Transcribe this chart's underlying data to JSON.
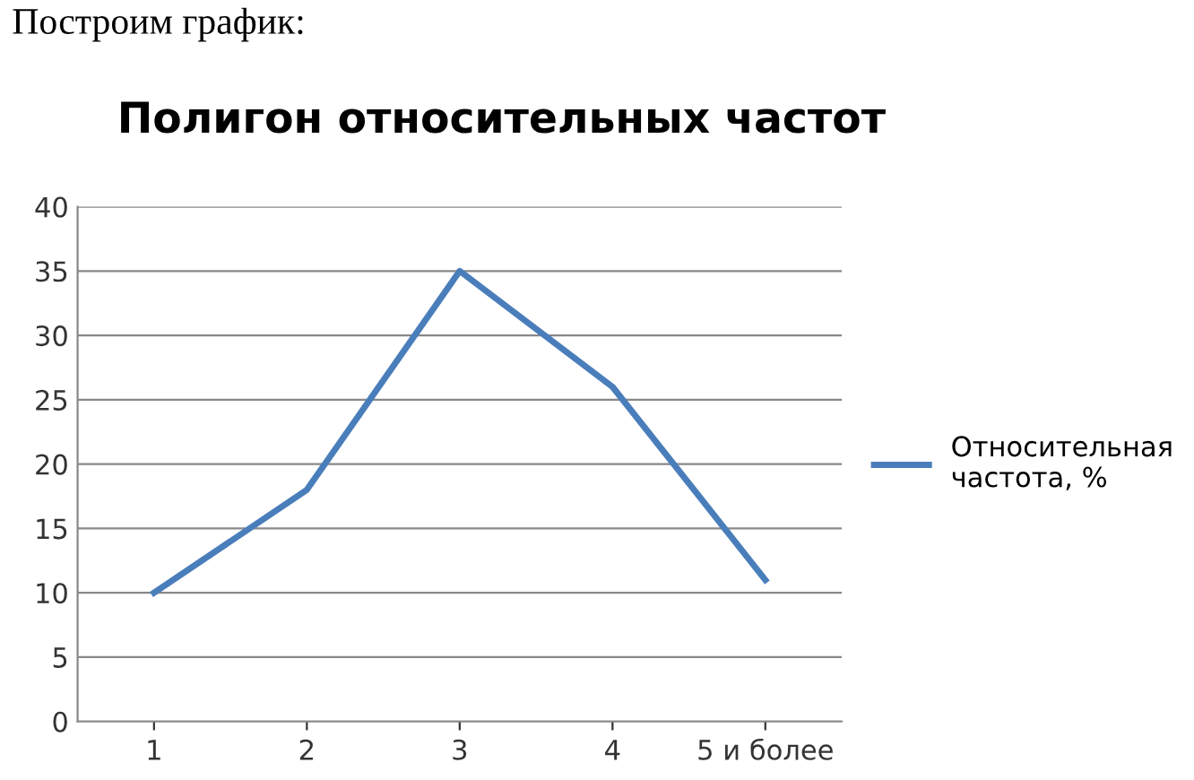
{
  "chart_data": {
    "type": "line",
    "title": "Полигон относительных частот",
    "annotations": [
      "Построим график:"
    ],
    "categories": [
      "1",
      "2",
      "3",
      "4",
      "5 и более"
    ],
    "series": [
      {
        "name": "Относительная частота, %",
        "color": "#4a7ebb",
        "values": [
          10,
          18,
          35,
          26,
          11
        ]
      }
    ],
    "ylim": [
      0,
      40
    ],
    "yticks": [
      0,
      5,
      10,
      15,
      20,
      25,
      30,
      35,
      40
    ],
    "grid": "y",
    "legend": "right",
    "marker": "none",
    "line_style": "solid"
  }
}
